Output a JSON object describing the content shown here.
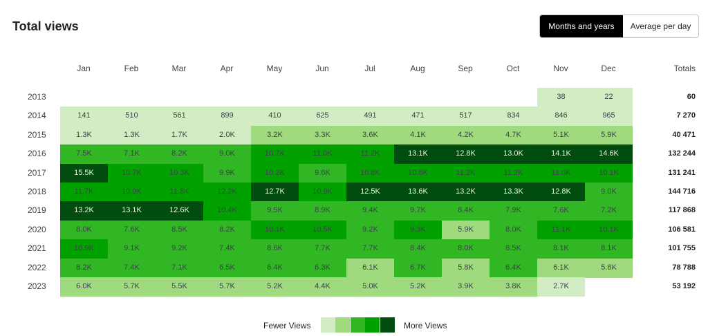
{
  "header": {
    "title": "Total views"
  },
  "toggle": {
    "months_label": "Months and years",
    "average_label": "Average per day"
  },
  "table": {
    "months": [
      "Jan",
      "Feb",
      "Mar",
      "Apr",
      "May",
      "Jun",
      "Jul",
      "Aug",
      "Sep",
      "Oct",
      "Nov",
      "Dec"
    ],
    "totals_label": "Totals",
    "rows": [
      {
        "year": "2013",
        "cells": [
          "",
          "",
          "",
          "",
          "",
          "",
          "",
          "",
          "",
          "",
          "38",
          "22"
        ],
        "levels": [
          0,
          0,
          0,
          0,
          0,
          0,
          0,
          0,
          0,
          0,
          1,
          1
        ],
        "total": "60"
      },
      {
        "year": "2014",
        "cells": [
          "141",
          "510",
          "561",
          "899",
          "410",
          "625",
          "491",
          "471",
          "517",
          "834",
          "846",
          "965"
        ],
        "levels": [
          1,
          1,
          1,
          1,
          1,
          1,
          1,
          1,
          1,
          1,
          1,
          1
        ],
        "total": "7 270"
      },
      {
        "year": "2015",
        "cells": [
          "1.3K",
          "1.3K",
          "1.7K",
          "2.0K",
          "3.2K",
          "3.3K",
          "3.6K",
          "4.1K",
          "4.2K",
          "4.7K",
          "5.1K",
          "5.9K"
        ],
        "levels": [
          1,
          1,
          1,
          1,
          2,
          2,
          2,
          2,
          2,
          2,
          2,
          2
        ],
        "total": "40 471"
      },
      {
        "year": "2016",
        "cells": [
          "7.5K",
          "7.1K",
          "8.2K",
          "9.0K",
          "10.7K",
          "11.0K",
          "11.2K",
          "13.1K",
          "12.8K",
          "13.0K",
          "14.1K",
          "14.6K"
        ],
        "levels": [
          3,
          3,
          3,
          3,
          4,
          4,
          4,
          5,
          5,
          5,
          5,
          5
        ],
        "total": "132 244"
      },
      {
        "year": "2017",
        "cells": [
          "15.5K",
          "10.7K",
          "10.3K",
          "9.9K",
          "10.2K",
          "9.6K",
          "10.8K",
          "10.8K",
          "11.2K",
          "11.2K",
          "11.0K",
          "10.1K"
        ],
        "levels": [
          5,
          4,
          4,
          3,
          4,
          3,
          4,
          4,
          4,
          4,
          4,
          4
        ],
        "total": "131 241"
      },
      {
        "year": "2018",
        "cells": [
          "11.7K",
          "10.9K",
          "11.8K",
          "12.2K",
          "12.7K",
          "10.9K",
          "12.5K",
          "13.6K",
          "13.2K",
          "13.3K",
          "12.8K",
          "9.0K"
        ],
        "levels": [
          4,
          4,
          4,
          4,
          5,
          4,
          5,
          5,
          5,
          5,
          5,
          3
        ],
        "total": "144 716"
      },
      {
        "year": "2019",
        "cells": [
          "13.2K",
          "13.1K",
          "12.6K",
          "10.4K",
          "9.5K",
          "8.9K",
          "9.4K",
          "9.7K",
          "8.4K",
          "7.9K",
          "7.6K",
          "7.2K"
        ],
        "levels": [
          5,
          5,
          5,
          4,
          3,
          3,
          3,
          3,
          3,
          3,
          3,
          3
        ],
        "total": "117 868"
      },
      {
        "year": "2020",
        "cells": [
          "8.0K",
          "7.6K",
          "8.5K",
          "8.2K",
          "10.1K",
          "10.5K",
          "9.2K",
          "9.3K",
          "5.9K",
          "8.0K",
          "11.1K",
          "10.1K"
        ],
        "levels": [
          3,
          3,
          3,
          3,
          4,
          4,
          3,
          4,
          2,
          3,
          4,
          4
        ],
        "total": "106 581"
      },
      {
        "year": "2021",
        "cells": [
          "10.9K",
          "9.1K",
          "9.2K",
          "7.4K",
          "8.6K",
          "7.7K",
          "7.7K",
          "8.4K",
          "8.0K",
          "8.5K",
          "8.1K",
          "8.1K"
        ],
        "levels": [
          4,
          3,
          3,
          3,
          3,
          3,
          3,
          3,
          3,
          3,
          3,
          3
        ],
        "total": "101 755"
      },
      {
        "year": "2022",
        "cells": [
          "8.2K",
          "7.4K",
          "7.1K",
          "6.5K",
          "6.4K",
          "6.3K",
          "6.1K",
          "6.7K",
          "5.8K",
          "6.4K",
          "6.1K",
          "5.8K"
        ],
        "levels": [
          3,
          3,
          3,
          3,
          3,
          3,
          2,
          3,
          2,
          3,
          2,
          2
        ],
        "total": "78 788"
      },
      {
        "year": "2023",
        "cells": [
          "6.0K",
          "5.7K",
          "5.5K",
          "5.7K",
          "5.2K",
          "4.4K",
          "5.0K",
          "5.2K",
          "3.9K",
          "3.8K",
          "2.7K",
          ""
        ],
        "levels": [
          2,
          2,
          2,
          2,
          2,
          2,
          2,
          2,
          2,
          2,
          1,
          0
        ],
        "total": "53 192"
      }
    ]
  },
  "legend": {
    "fewer_label": "Fewer Views",
    "more_label": "More Views",
    "colors": [
      "#d2edc3",
      "#9fdb7e",
      "#32b724",
      "#01a200",
      "#014d0f"
    ]
  }
}
